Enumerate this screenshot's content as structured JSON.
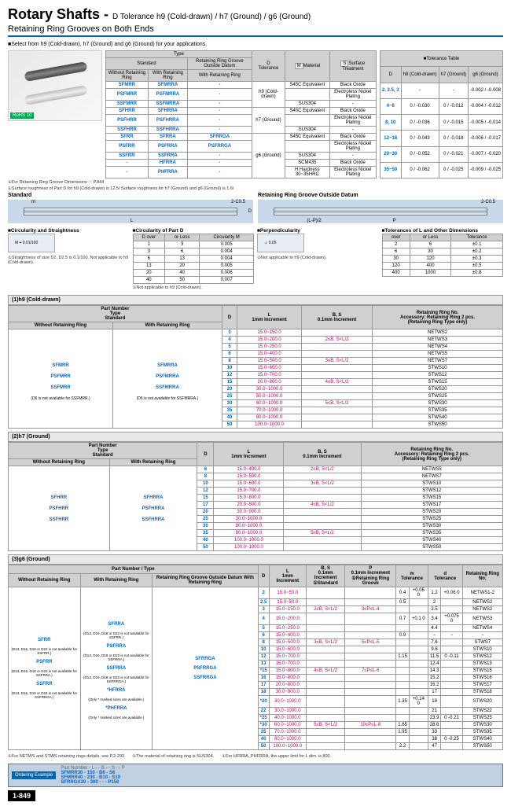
{
  "title_main": "Rotary Shafts -",
  "title_sub": "D Tolerance h9 (Cold-drawn) / h7 (Ground) / g6 (Ground)",
  "subtitle": "Retaining Ring Grooves on Both Ends",
  "select_note": "■Select from h9 (Cold-drawn), h7 (Ground) and g6 (Ground) for your applications.",
  "rohs": "RoHS 10",
  "type_table": {
    "headers": [
      "Type",
      "D Tolerance",
      "M Material",
      "S Surface Treatment"
    ],
    "sub_headers": [
      "Standard",
      "Retaining Ring Groove Outside Datum"
    ],
    "sub2": [
      "Without Retaining Ring",
      "With Retaining Ring",
      "With Retaining Ring"
    ],
    "rows": [
      {
        "codes": [
          "SFMRR",
          "SFMRRA",
          "-"
        ],
        "tol": "h9 (Cold-drawn)",
        "mat": "S45C Equivalent",
        "surf": "Black Oxide"
      },
      {
        "codes": [
          "PSFMRR",
          "PSFMRRA",
          "-"
        ],
        "tol": "",
        "mat": "",
        "surf": "Electroless Nickel Plating"
      },
      {
        "codes": [
          "SSFMRR",
          "SSFMRRA",
          "-"
        ],
        "tol": "",
        "mat": "SUS304",
        "surf": "-"
      },
      {
        "codes": [
          "SFHRR",
          "SFHRRA",
          "-"
        ],
        "tol": "h7 (Ground)",
        "mat": "S45C Equivalent",
        "surf": "Black Oxide"
      },
      {
        "codes": [
          "PSFHRR",
          "PSFHRRA",
          "-"
        ],
        "tol": "",
        "mat": "",
        "surf": "Electroless Nickel Plating"
      },
      {
        "codes": [
          "SSFHRR",
          "SSFHRRA",
          "-"
        ],
        "tol": "",
        "mat": "SUS304",
        "surf": "-"
      },
      {
        "codes": [
          "SFRR",
          "SFRRA",
          "SFRRGA"
        ],
        "tol": "g6 (Ground)",
        "mat": "S45C Equivalent",
        "surf": "Black Oxide"
      },
      {
        "codes": [
          "PSFRR",
          "PSFRRA",
          "PSFRRGA"
        ],
        "tol": "",
        "mat": "",
        "surf": "Electroless Nickel Plating"
      },
      {
        "codes": [
          "SSFRR",
          "SSFRRA",
          "-"
        ],
        "tol": "",
        "mat": "SUS304",
        "surf": "-"
      },
      {
        "codes": [
          "-",
          "HFRRA",
          "-"
        ],
        "tol": "",
        "mat": "SCM435",
        "surf": "Black Oxide"
      },
      {
        "codes": [
          "-",
          "PHFRRA",
          "-"
        ],
        "tol": "",
        "mat": "H Hardness 30~35HRC",
        "surf": "Electroless Nickel Plating"
      }
    ]
  },
  "tol_table": {
    "label": "■Tolerance Table",
    "headers": [
      "D",
      "h9 (Cold-drawn)",
      "h7 (Ground)",
      "g6 (Ground)"
    ],
    "rows": [
      [
        "2, 2.5, 3",
        "-",
        "-",
        "-0.002 / -0.008"
      ],
      [
        "4~6",
        "0 / -0.030",
        "0 / -0.012",
        "-0.004 / -0.012"
      ],
      [
        "8, 10",
        "0 / -0.036",
        "0 / -0.015",
        "-0.005 / -0.014"
      ],
      [
        "12~18",
        "0 / -0.043",
        "0 / -0.018",
        "-0.006 / -0.017"
      ],
      [
        "20~30",
        "0 / -0.052",
        "0 / -0.021",
        "-0.007 / -0.020"
      ],
      [
        "35~50",
        "0 / -0.062",
        "0 / -0.025",
        "-0.009 / -0.025"
      ]
    ]
  },
  "note1": "①For Retaining Ring Groove Dimensions ☞ P.844",
  "note2": "①Surface roughness of Part D for h9 (Cold-drawn) is 12.5/ Surface roughness for h7 (Ground) and g6 (Ground) is 1.6/",
  "diag_labels": {
    "standard": "Standard",
    "outside": "Retaining Ring Groove Outside Datum",
    "m": "m",
    "L": "L",
    "D": "D",
    "B": "B",
    "S": "S",
    "P": "P",
    "chamfer": "2-C0.5",
    "LP2": "(L-P)/2"
  },
  "circ_straight": {
    "label": "■Circularity and Straightness",
    "box": "0.01/100",
    "note": "①Straightness of size D2, D2.5 is 0.1/100. Not applicable to h9 (Cold-drawn)."
  },
  "circ_partD": {
    "label": "■Circularity of Part D",
    "headers": [
      "D over",
      "or Less",
      "Circularity M"
    ],
    "rows": [
      [
        "1",
        "3",
        "0.005"
      ],
      [
        "3",
        "6",
        "0.004"
      ],
      [
        "6",
        "13",
        "0.004"
      ],
      [
        "13",
        "20",
        "0.005"
      ],
      [
        "20",
        "40",
        "0.006"
      ],
      [
        "40",
        "50",
        "0.007"
      ]
    ],
    "note": "①Not applicable to h9 (Cold-drawn)."
  },
  "perp": {
    "label": "■Perpendicularity",
    "val": "⊥ 0.05",
    "note": "①Not applicable to h9 (Cold-drawn)."
  },
  "tol_L": {
    "label": "■Tolerances of L and Other Dimensions",
    "headers": [
      "Dimension over",
      "or Less",
      "Tolerance"
    ],
    "rows": [
      [
        "2",
        "6",
        "±0.1"
      ],
      [
        "6",
        "30",
        "±0.2"
      ],
      [
        "30",
        "120",
        "±0.3"
      ],
      [
        "120",
        "400",
        "±0.5"
      ],
      [
        "400",
        "1000",
        "±0.8"
      ]
    ]
  },
  "sec1": {
    "title": "(1)h9 (Cold-drawn)",
    "headers": [
      "Part Number Type Standard",
      "D",
      "L 1mm Increment",
      "B, S 0.1mm Increment",
      "Retaining Ring No. Accessory: Retaining Ring 2 pcs. (Retaining Ring Type only)"
    ],
    "type_cols": [
      "Without Retaining Ring",
      "With Retaining Ring"
    ],
    "codes": [
      [
        "SFMRR",
        "SFMRRA"
      ],
      [
        "PSFMRR",
        "PSFMRRA"
      ],
      [
        "SSFMRR",
        "SSFMRRA"
      ]
    ],
    "code_note": "(D6 is not available for SSFMRR.) (D6 is not available for SSFMRRA.)",
    "rows": [
      [
        "3",
        "15.0~150.0",
        "",
        "NETWS2"
      ],
      [
        "4",
        "15.0~200.0",
        "2≤B, S<L/2",
        "NETWS3"
      ],
      [
        "5",
        "15.0~250.0",
        "",
        "NETWS4"
      ],
      [
        "6",
        "15.0~400.0",
        "",
        "NETWS5"
      ],
      [
        "8",
        "15.0~500.0",
        "3≤B, S<L/2",
        "NETWS7"
      ],
      [
        "10",
        "15.0~600.0",
        "",
        "STWS10"
      ],
      [
        "12",
        "15.0~700.0",
        "",
        "STWS12"
      ],
      [
        "15",
        "20.0~800.0",
        "4≤B, S<L/2",
        "STWS15"
      ],
      [
        "20",
        "30.0~1000.0",
        "",
        "STWS20"
      ],
      [
        "25",
        "50.0~1000.0",
        "",
        "STWS25"
      ],
      [
        "30",
        "60.0~1000.0",
        "5≤B, S<L/2",
        "STWS30"
      ],
      [
        "35",
        "70.0~1000.0",
        "",
        "STWS35"
      ],
      [
        "40",
        "80.0~1000.0",
        "",
        "STWS40"
      ],
      [
        "50",
        "100.0~1000.0",
        "",
        "STWS50"
      ]
    ]
  },
  "sec2": {
    "title": "(2)h7 (Ground)",
    "type_cols": [
      "Without Retaining Ring",
      "With Retaining Ring"
    ],
    "codes": [
      [
        "SFHRR",
        "SFHRRA"
      ],
      [
        "PSFHRR",
        "PSFHRRA"
      ],
      [
        "SSFHRR",
        "SSFHRRA"
      ]
    ],
    "rows": [
      [
        "6",
        "15.0~400.0",
        "2≤B, S<L/2",
        "NETWS5"
      ],
      [
        "8",
        "15.0~500.0",
        "",
        "NETWS7"
      ],
      [
        "10",
        "15.0~600.0",
        "3≤B, S<L/2",
        "STWS10"
      ],
      [
        "12",
        "15.0~700.0",
        "",
        "STWS12"
      ],
      [
        "15",
        "15.0~800.0",
        "",
        "STWS15"
      ],
      [
        "17",
        "20.0~800.0",
        "4≤B, S<L/2",
        "STWS17"
      ],
      [
        "20",
        "30.0~900.0",
        "",
        "STWS20"
      ],
      [
        "25",
        "30.0~1000.0",
        "",
        "STWS25"
      ],
      [
        "30",
        "80.0~1000.0",
        "",
        "STWS30"
      ],
      [
        "35",
        "80.0~1000.0",
        "5≤B, S<L/2",
        "STWS35"
      ],
      [
        "40",
        "100.0~1000.0",
        "",
        "STWS40"
      ],
      [
        "50",
        "100.0~1000.0",
        "",
        "STWS50"
      ]
    ]
  },
  "sec3": {
    "title": "(3)g6 (Ground)",
    "headers": [
      "Part Number Type",
      "D",
      "L 1mm Increment",
      "B, S 0.1mm Increment ①Standard",
      "P 0.1mm Increment ①Retaining Ring Groove",
      "m Tolerance",
      "d Tolerance",
      "Retaining Ring No."
    ],
    "type_cols": [
      "Without Retaining Ring",
      "With Retaining Ring",
      "Retaining Ring Groove Outside Datum With Retaining Ring"
    ],
    "codes": [
      [
        "SFRR",
        "SFRRA",
        "SFRRGA"
      ],
      [
        "PSFRR",
        "PSFRRA",
        "PSFRRGA"
      ],
      [
        "SSFRR",
        "SSFRRA",
        "SSFRRGA"
      ],
      [
        "",
        "*HFRRA",
        ""
      ],
      [
        "",
        "*PHFRRA",
        ""
      ]
    ],
    "code_notes": [
      "(D13, D16, D18 or D22 is not available for SSFRR.)",
      "(D13, D16, D18 or D22 is not available for SSFRRA.)",
      "(D13, D16, D18 or D22 is not available for SSFRRGA.)",
      "(Only * marked sizes are available.)",
      "(Only * marked sizes are available.)"
    ],
    "rows": [
      [
        "2",
        "15.0~50.0",
        "",
        "",
        "0.4",
        "+0.05 0",
        "1.2",
        "+0.06 0",
        "NETWS1-2"
      ],
      [
        "2.5",
        "15.0~50.0",
        "",
        "",
        "0.5",
        "",
        "2",
        "",
        "NETWS2"
      ],
      [
        "3",
        "15.0~150.0",
        "2≤B, S<L/2",
        "3≤P≤L-4",
        "",
        "",
        "2.5",
        "",
        "NETWS2"
      ],
      [
        "4",
        "15.0~200.0",
        "",
        "",
        "0.7",
        "+0.1 0",
        "3.4",
        "+0.075 0",
        "NETWS3"
      ],
      [
        "5",
        "15.0~250.0",
        "",
        "",
        "",
        "",
        "4.4",
        "",
        "NETWS4"
      ],
      [
        "6",
        "15.0~400.0",
        "",
        "",
        "0.9",
        "",
        "−",
        "−",
        "−"
      ],
      [
        "8",
        "15.0~500.0",
        "3≤B, S<L/2",
        "5≤P≤L-5",
        "",
        "",
        "7.6",
        "",
        "STWS7"
      ],
      [
        "10",
        "15.0~600.0",
        "",
        "",
        "",
        "",
        "9.6",
        "",
        "STWS10"
      ],
      [
        "12",
        "15.0~700.0",
        "",
        "",
        "1.15",
        "",
        "11.5",
        "0 -0.11",
        "STWS12"
      ],
      [
        "13",
        "15.0~700.0",
        "",
        "",
        "",
        "",
        "12.4",
        "",
        "STWS13"
      ],
      [
        "*15",
        "15.0~800.0",
        "4≤B, S<L/2",
        "7≤P≤L-6",
        "",
        "",
        "14.3",
        "",
        "STWS15"
      ],
      [
        "16",
        "15.0~800.0",
        "",
        "",
        "",
        "",
        "15.2",
        "",
        "STWS16"
      ],
      [
        "17",
        "20.0~800.0",
        "",
        "",
        "",
        "",
        "16.2",
        "",
        "STWS17"
      ],
      [
        "18",
        "30.0~900.0",
        "",
        "",
        "",
        "",
        "17",
        "",
        "STWS18"
      ],
      [
        "*20",
        "30.0~1000.0",
        "",
        "",
        "1.35",
        "+0.14 0",
        "19",
        "",
        "STWS20"
      ],
      [
        "22",
        "30.0~1000.0",
        "",
        "",
        "",
        "",
        "21",
        "",
        "STWS22"
      ],
      [
        "*25",
        "40.0~1000.0",
        "",
        "",
        "",
        "",
        "23.9",
        "0 -0.21",
        "STWS25"
      ],
      [
        "*30",
        "60.0~1000.0",
        "5≤B, S<L/2",
        "10≤P≤L-8",
        "1.65",
        "",
        "28.6",
        "",
        "STWS30"
      ],
      [
        "35",
        "70.0~1000.0",
        "",
        "",
        "1.95",
        "",
        "33",
        "",
        "STWS35"
      ],
      [
        "40",
        "80.0~1000.0",
        "",
        "",
        "",
        "",
        "38",
        "0 -0.25",
        "STWS40"
      ],
      [
        "50",
        "100.0~1000.0",
        "",
        "",
        "2.2",
        "",
        "47",
        "",
        "STWS50"
      ]
    ]
  },
  "bottom_notes": [
    "①For NETWS and STWS retaining rings details, see P.2-293",
    "①The material of retaining ring is SUS304.",
    "①For HFRRA, PHFRRA, the upper limit for L dim. is 800."
  ],
  "ordering": {
    "label": "Ordering Example",
    "parts": [
      "Part Number",
      "- L -",
      "- B -",
      "- S -",
      "- P"
    ],
    "examples": [
      "SFMRR30 - 150 - B6 - S6",
      "SFMRR40 - 230 - B10 - S10",
      "SFRRGA20 - 300 - - - P150"
    ]
  },
  "page_num": "1-849"
}
